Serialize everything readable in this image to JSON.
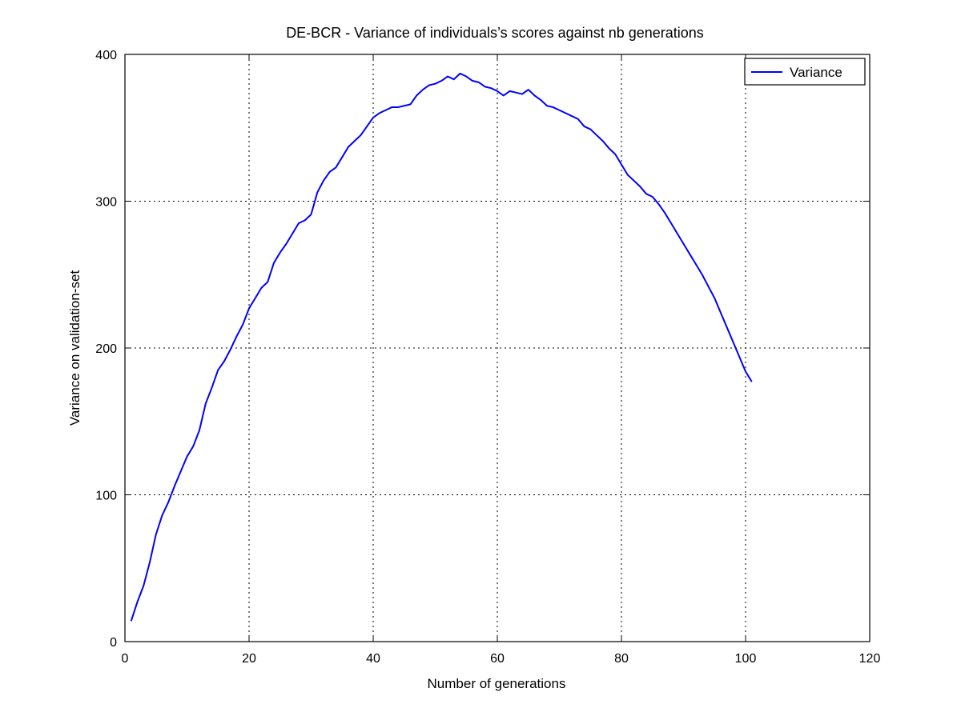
{
  "chart_data": {
    "type": "line",
    "title": "DE-BCR - Variance of individuals’s scores against nb generations",
    "xlabel": "Number of generations",
    "ylabel": "Variance on validation-set",
    "xlim": [
      0,
      120
    ],
    "ylim": [
      0,
      400
    ],
    "xticks": [
      "0",
      "20",
      "40",
      "60",
      "80",
      "100",
      "120"
    ],
    "yticks": [
      "0",
      "100",
      "200",
      "300",
      "400"
    ],
    "grid": true,
    "legend_position": "top-right",
    "series": [
      {
        "name": "Variance",
        "color": "#0000ff",
        "x": [
          1,
          2,
          3,
          4,
          5,
          6,
          7,
          8,
          9,
          10,
          11,
          12,
          13,
          14,
          15,
          16,
          17,
          18,
          19,
          20,
          21,
          22,
          23,
          24,
          25,
          26,
          27,
          28,
          29,
          30,
          31,
          32,
          33,
          34,
          35,
          36,
          37,
          38,
          39,
          40,
          41,
          42,
          43,
          44,
          45,
          46,
          47,
          48,
          49,
          50,
          51,
          52,
          53,
          54,
          55,
          56,
          57,
          58,
          59,
          60,
          61,
          62,
          63,
          64,
          65,
          66,
          67,
          68,
          69,
          70,
          71,
          72,
          73,
          74,
          75,
          76,
          77,
          78,
          79,
          80,
          81,
          82,
          83,
          84,
          85,
          86,
          87,
          88,
          89,
          90,
          91,
          92,
          93,
          94,
          95,
          96,
          97,
          98,
          99,
          100,
          101
        ],
        "values": [
          14,
          27,
          38,
          54,
          73,
          86,
          95,
          106,
          116,
          126,
          133,
          144,
          162,
          173,
          185,
          191,
          199,
          208,
          216,
          227,
          234,
          241,
          245,
          258,
          265,
          271,
          278,
          285,
          287,
          291,
          306,
          314,
          320,
          323,
          330,
          337,
          341,
          345,
          351,
          357,
          360,
          362,
          364,
          364,
          365,
          366,
          372,
          376,
          379,
          380,
          382,
          385,
          383,
          387,
          385,
          382,
          381,
          378,
          377,
          375,
          372,
          375,
          374,
          373,
          376,
          372,
          369,
          365,
          364,
          362,
          360,
          358,
          356,
          351,
          349,
          345,
          341,
          336,
          332,
          325,
          318,
          314,
          310,
          305,
          303,
          298,
          292,
          285,
          278,
          271,
          264,
          257,
          250,
          242,
          234,
          224,
          214,
          204,
          194,
          184,
          177
        ]
      }
    ]
  }
}
